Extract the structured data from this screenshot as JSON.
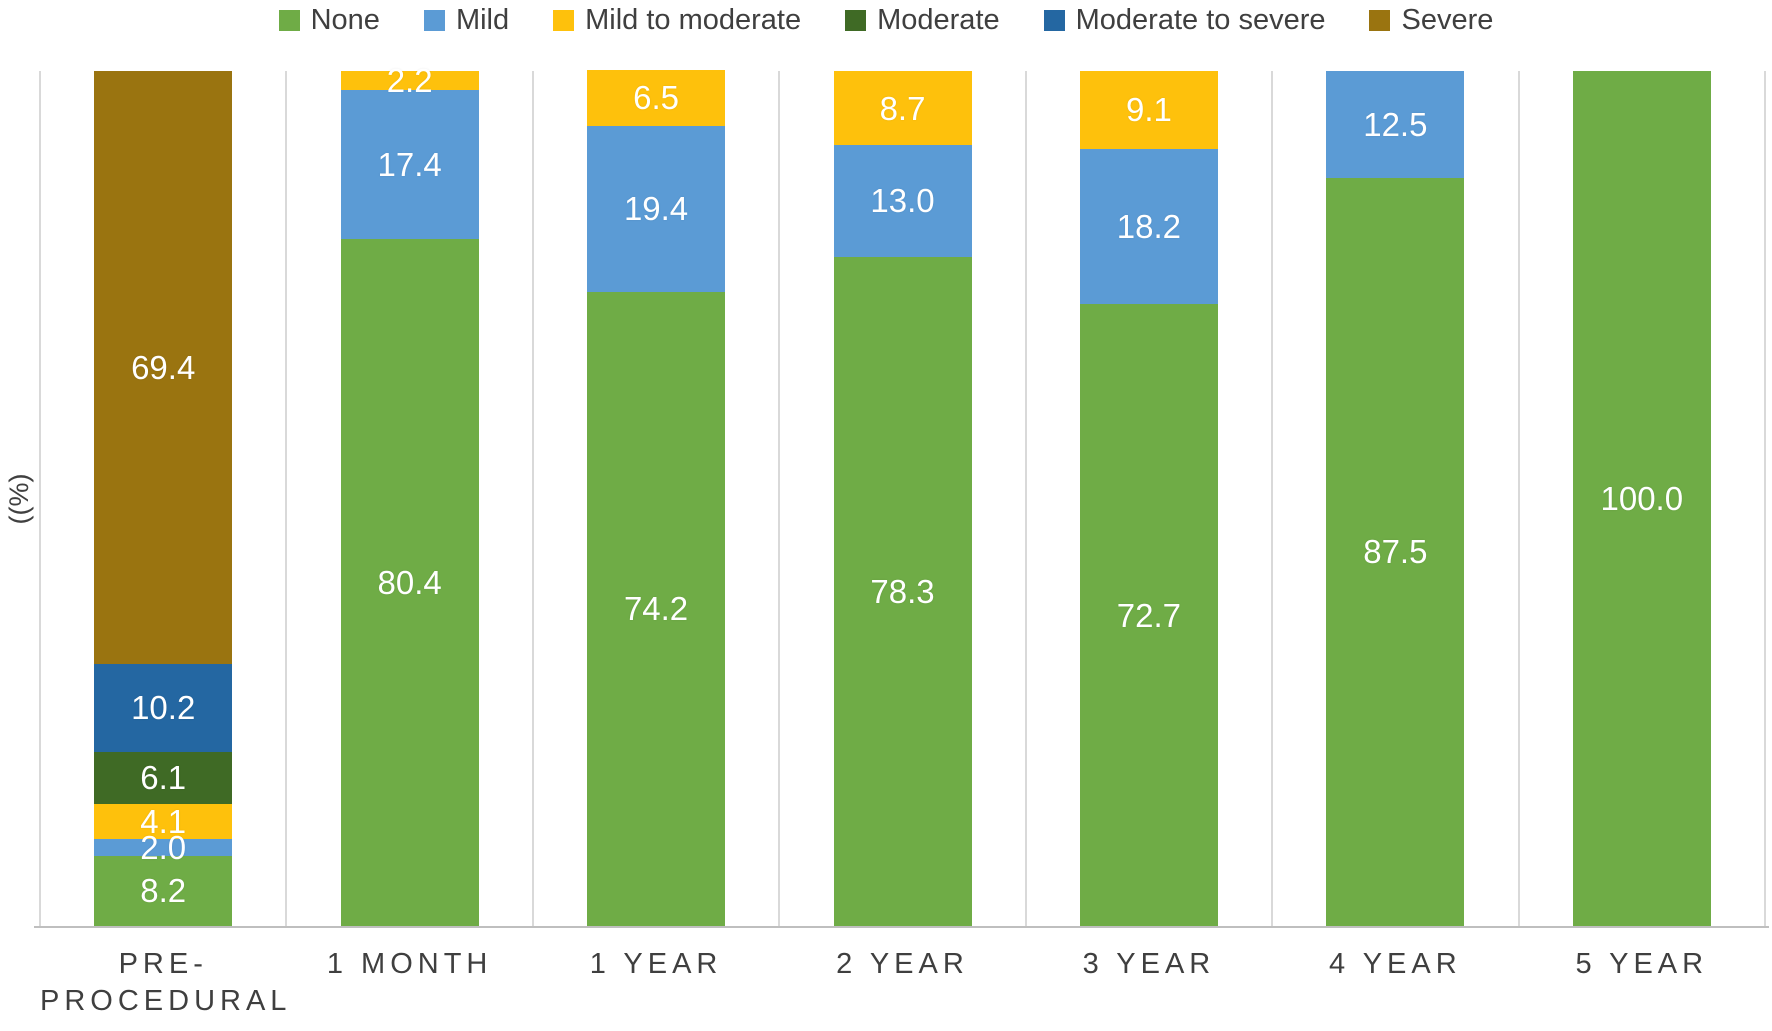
{
  "chart_data": {
    "type": "bar",
    "stacked": true,
    "title": "",
    "ylabel": "((%)",
    "xlabel": "",
    "ylim": [
      0,
      100
    ],
    "grid": "vertical-category-separators",
    "legend_position": "top",
    "value_label_format": "one-decimal",
    "categories": [
      "PRE-\nPROCEDURAL",
      "1 MONTH",
      "1 YEAR",
      "2 YEAR",
      "3 YEAR",
      "4 YEAR",
      "5 YEAR"
    ],
    "series": [
      {
        "name": "None",
        "color": "#6fac46",
        "values": [
          8.2,
          80.4,
          74.2,
          78.3,
          72.7,
          87.5,
          100.0
        ]
      },
      {
        "name": "Mild",
        "color": "#5b9bd5",
        "values": [
          2.0,
          17.4,
          19.4,
          13.0,
          18.2,
          12.5,
          0
        ]
      },
      {
        "name": "Mild to moderate",
        "color": "#fec10c",
        "values": [
          4.1,
          2.2,
          6.5,
          8.7,
          9.1,
          0,
          0
        ]
      },
      {
        "name": "Moderate",
        "color": "#3f6a25",
        "values": [
          6.1,
          0,
          0,
          0,
          0,
          0,
          0
        ]
      },
      {
        "name": "Moderate to severe",
        "color": "#2467a2",
        "values": [
          10.2,
          0,
          0,
          0,
          0,
          0,
          0
        ]
      },
      {
        "name": "Severe",
        "color": "#9a7410",
        "values": [
          69.4,
          0,
          0,
          0,
          0,
          0,
          0
        ]
      }
    ],
    "colors": {
      "grid_line": "#d9d9d9",
      "axis_line": "#bfbfbf",
      "tick_label": "#3f3f3f",
      "value_label": "#ffffff"
    }
  }
}
